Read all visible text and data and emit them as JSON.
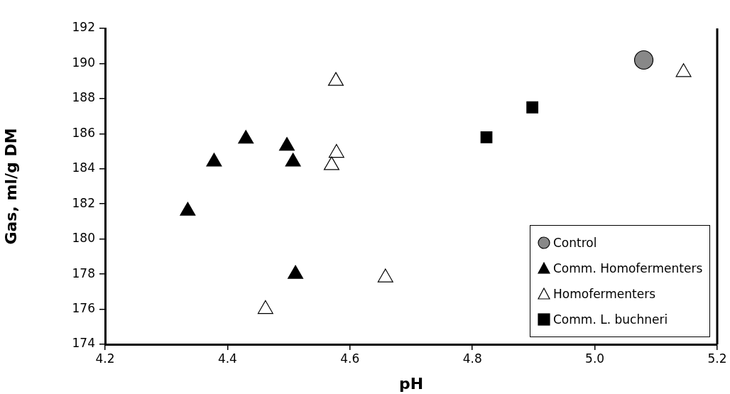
{
  "chart_data": {
    "type": "scatter",
    "xlabel": "pH",
    "ylabel": "Gas, ml/g DM",
    "xlim": [
      4.2,
      5.2
    ],
    "xticks": [
      {
        "value": 4.2,
        "label": "4.2"
      },
      {
        "value": 4.4,
        "label": "4.4"
      },
      {
        "value": 4.6,
        "label": "4.6"
      },
      {
        "value": 4.8,
        "label": "4.8"
      },
      {
        "value": 5.0,
        "label": "5.0"
      },
      {
        "value": 5.2,
        "label": "5.2"
      }
    ],
    "ylim": [
      174,
      192
    ],
    "yticks": [
      174,
      176,
      178,
      180,
      182,
      184,
      186,
      188,
      190,
      192
    ],
    "grid": false,
    "legend": "bottom right",
    "series": [
      {
        "name": "Control",
        "color": "#888888",
        "marker": "circle",
        "x": [
          5.08
        ],
        "values": [
          190.2
        ]
      },
      {
        "name": "Comm. Homofermenters",
        "color": "#000000",
        "marker": "triangle",
        "x": [
          4.335,
          4.378,
          4.43,
          4.497,
          4.507,
          4.511
        ],
        "values": [
          181.6,
          184.4,
          185.7,
          185.3,
          184.4,
          178.0
        ]
      },
      {
        "name": "Homofermenters",
        "color": "#ffffff",
        "marker": "triangle",
        "x": [
          4.577,
          4.578,
          4.57,
          4.462,
          4.658,
          5.145
        ],
        "values": [
          189.0,
          184.9,
          184.2,
          176.0,
          177.8,
          189.5
        ]
      },
      {
        "name": "Comm. L. buchneri",
        "color": "#000000",
        "marker": "square",
        "x": [
          4.823,
          4.898
        ],
        "values": [
          185.8,
          187.5
        ]
      }
    ]
  }
}
